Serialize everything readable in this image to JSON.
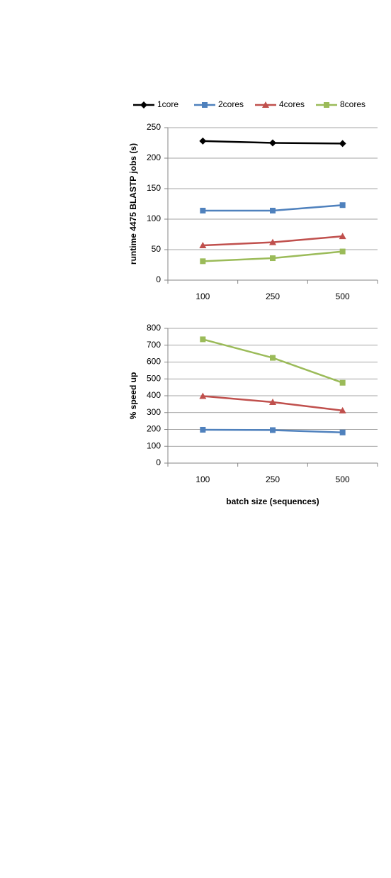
{
  "chart_data": [
    {
      "type": "line",
      "ylabel": "runtime 4475 BLASTP jobs (s)",
      "categories": [
        "100",
        "250",
        "500"
      ],
      "ylim": [
        0,
        250
      ],
      "yticks": [
        0,
        50,
        100,
        150,
        200,
        250
      ],
      "grid": true,
      "legend": "top",
      "series": [
        {
          "name": "1core",
          "color": "#000000",
          "marker": "diamond",
          "values": [
            228,
            225,
            224
          ]
        },
        {
          "name": "2cores",
          "color": "#4f81bd",
          "marker": "square",
          "values": [
            114,
            114,
            123
          ]
        },
        {
          "name": "4cores",
          "color": "#c0504d",
          "marker": "triangle",
          "values": [
            57,
            62,
            72
          ]
        },
        {
          "name": "8cores",
          "color": "#9bbb59",
          "marker": "square",
          "values": [
            31,
            36,
            47
          ]
        }
      ]
    },
    {
      "type": "line",
      "ylabel": "% speed up",
      "xlabel": "batch size (sequences)",
      "categories": [
        "100",
        "250",
        "500"
      ],
      "ylim": [
        0,
        800
      ],
      "yticks": [
        0,
        100,
        200,
        300,
        400,
        500,
        600,
        700,
        800
      ],
      "grid": true,
      "series": [
        {
          "color": "#4f81bd",
          "marker": "square",
          "values": [
            198,
            196,
            182
          ]
        },
        {
          "color": "#c0504d",
          "marker": "triangle",
          "values": [
            398,
            362,
            312
          ]
        },
        {
          "color": "#9bbb59",
          "marker": "square",
          "values": [
            735,
            625,
            477
          ]
        }
      ]
    }
  ]
}
